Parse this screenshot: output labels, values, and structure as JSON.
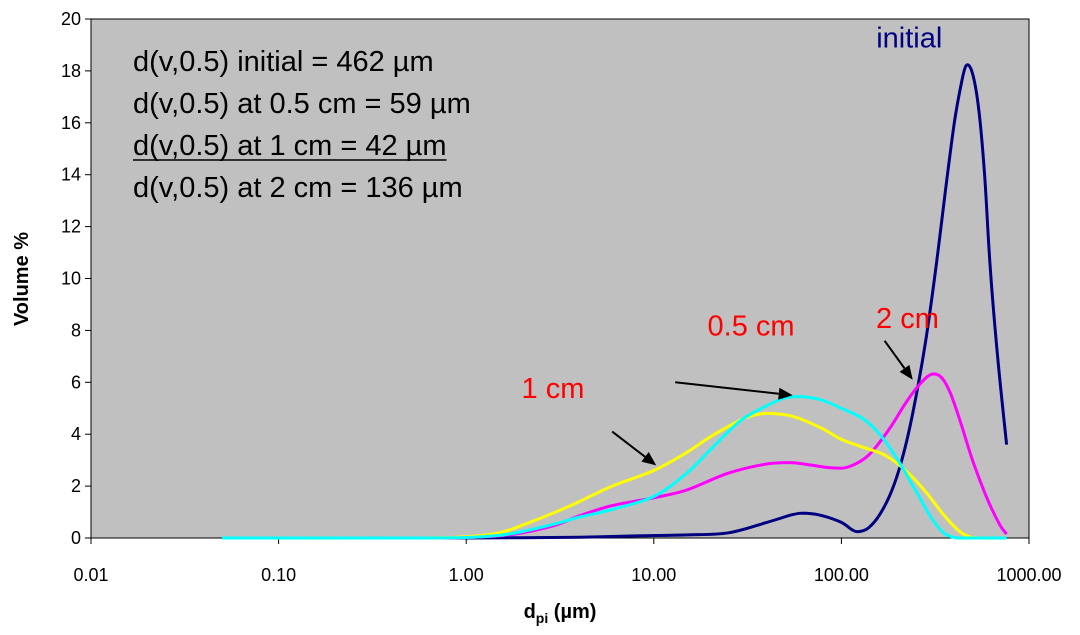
{
  "chart_data": {
    "type": "line",
    "xscale": "log",
    "xlim": [
      0.01,
      1000
    ],
    "ylim": [
      0,
      20
    ],
    "x_ticks": [
      "0.01",
      "0.10",
      "1.00",
      "10.00",
      "100.00",
      "1000.00"
    ],
    "y_ticks": [
      "0",
      "2",
      "4",
      "6",
      "8",
      "10",
      "12",
      "14",
      "16",
      "18",
      "20"
    ],
    "xlabel_main": "d",
    "xlabel_sub": "pi",
    "xlabel_unit": " (µm)",
    "ylabel": "Volume %",
    "plot_background": "#c0c0c0",
    "grid": false,
    "annotations_text": [
      "d(v,0.5) initial = 462 µm",
      "d(v,0.5) at 0.5 cm = 59 µm",
      "d(v,0.5) at 1 cm = 42 µm",
      "d(v,0.5) at 2 cm = 136 µm"
    ],
    "underlined_annotation_index": 2,
    "curve_labels": [
      {
        "text": "initial",
        "color": "#000080",
        "x": 230,
        "y": 18.9
      },
      {
        "text": "0.5 cm",
        "color": "#ff0000",
        "x": 33,
        "y": 7.8
      },
      {
        "text": "2 cm",
        "color": "#ff0000",
        "x": 225,
        "y": 8.1
      },
      {
        "text": "1 cm",
        "color": "#ff0000",
        "x": 2.9,
        "y": 5.4
      }
    ],
    "arrows": [
      {
        "from": [
          13,
          6.0
        ],
        "to": [
          55,
          5.5
        ]
      },
      {
        "from": [
          170,
          7.6
        ],
        "to": [
          240,
          6.1
        ]
      },
      {
        "from": [
          6.0,
          4.1
        ],
        "to": [
          10.3,
          2.8
        ]
      }
    ],
    "series": [
      {
        "name": "initial",
        "color": "#000080",
        "x": [
          0.05,
          0.5,
          1.0,
          2.0,
          4.0,
          8.0,
          15.0,
          25.0,
          40.0,
          55.0,
          65.0,
          80.0,
          100.0,
          115.0,
          125.0,
          140.0,
          160.0,
          185.0,
          210.0,
          240.0,
          280.0,
          320.0,
          360.0,
          400.0,
          430.0,
          462.0,
          500.0,
          540.0,
          580.0,
          620.0,
          680.0,
          760.0
        ],
        "y": [
          0,
          0,
          0,
          0.01,
          0.03,
          0.08,
          0.12,
          0.2,
          0.6,
          0.9,
          0.95,
          0.85,
          0.6,
          0.3,
          0.25,
          0.4,
          0.9,
          1.8,
          3.0,
          4.8,
          7.5,
          10.5,
          13.5,
          16.0,
          17.3,
          18.2,
          17.9,
          16.5,
          14.0,
          10.5,
          7.0,
          3.6
        ]
      },
      {
        "name": "2 cm",
        "color": "#ff00ff",
        "x": [
          0.05,
          0.5,
          1.0,
          1.5,
          2.0,
          3.0,
          4.0,
          6.0,
          10.0,
          15.0,
          25.0,
          40.0,
          55.0,
          70.0,
          90.0,
          110.0,
          140.0,
          180.0,
          220.0,
          260.0,
          300.0,
          340.0,
          380.0,
          430.0,
          500.0,
          600.0,
          700.0,
          760.0
        ],
        "y": [
          0,
          0,
          0.02,
          0.08,
          0.2,
          0.5,
          0.85,
          1.25,
          1.55,
          1.85,
          2.5,
          2.85,
          2.9,
          2.8,
          2.7,
          2.75,
          3.2,
          4.2,
          5.2,
          5.9,
          6.3,
          6.2,
          5.6,
          4.5,
          3.0,
          1.5,
          0.5,
          0.15
        ]
      },
      {
        "name": "1 cm",
        "color": "#ffff00",
        "x": [
          0.05,
          0.5,
          1.0,
          1.5,
          2.0,
          3.0,
          4.0,
          6.0,
          10.0,
          15.0,
          20.0,
          25.0,
          30.0,
          35.0,
          40.0,
          50.0,
          60.0,
          80.0,
          100.0,
          130.0,
          170.0,
          220.0,
          280.0,
          350.0,
          420.0,
          480.0,
          550.0,
          760.0
        ],
        "y": [
          0,
          0,
          0.05,
          0.2,
          0.5,
          1.0,
          1.4,
          2.0,
          2.6,
          3.3,
          3.9,
          4.3,
          4.6,
          4.75,
          4.8,
          4.75,
          4.6,
          4.2,
          3.8,
          3.5,
          3.2,
          2.6,
          1.8,
          0.9,
          0.3,
          0.05,
          0,
          0
        ]
      },
      {
        "name": "0.5 cm",
        "color": "#00ffff",
        "x": [
          0.05,
          0.5,
          1.0,
          1.5,
          2.0,
          3.0,
          4.0,
          6.0,
          10.0,
          15.0,
          20.0,
          25.0,
          30.0,
          40.0,
          50.0,
          60.0,
          70.0,
          80.0,
          100.0,
          130.0,
          160.0,
          200.0,
          250.0,
          300.0,
          350.0,
          400.0,
          450.0,
          760.0
        ],
        "y": [
          0,
          0,
          0.02,
          0.1,
          0.25,
          0.55,
          0.8,
          1.1,
          1.6,
          2.5,
          3.4,
          4.1,
          4.6,
          5.1,
          5.4,
          5.45,
          5.4,
          5.3,
          5.0,
          4.6,
          4.0,
          3.0,
          1.8,
          0.8,
          0.2,
          0.02,
          0,
          0
        ]
      }
    ]
  }
}
